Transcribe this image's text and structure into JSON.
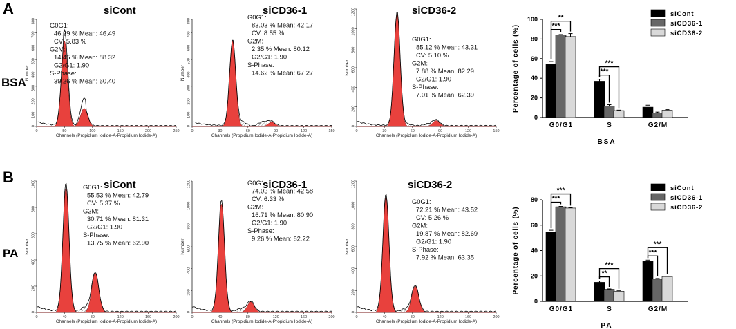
{
  "panels": [
    {
      "letter": "A",
      "row_label": "BSA",
      "histograms": [
        {
          "title": "siCont",
          "x_max_label": "250",
          "xticks": [
            "0",
            "50",
            "100",
            "150",
            "200",
            "250"
          ],
          "yticks": [
            "0",
            "100",
            "200",
            "300",
            "400",
            "500",
            "600",
            "700",
            "800"
          ],
          "xlabel": "Channels (Propidium Iodide-A-Propidium Iodide-A)",
          "ylabel": "Number",
          "stats": [
            "G0G1:",
            "46.29 %    Mean: 46.49",
            "CV: 5.83 %",
            "G2M:",
            "14.45 %    Mean: 88.32",
            "G2/G1: 1.90",
            "S-Phase:",
            "39.26 %    Mean: 60.40"
          ]
        },
        {
          "title": "siCD36-1",
          "x_max_label": "150",
          "xticks": [
            "0",
            "30",
            "60",
            "90",
            "120",
            "150"
          ],
          "yticks": [
            "0",
            "100",
            "200",
            "300",
            "400",
            "500",
            "600",
            "700",
            "800"
          ],
          "xlabel": "Channels (Propidium Iodide-A-Propidium Iodide-A)",
          "ylabel": "Number",
          "stats": [
            "G0G1:",
            "83.03 %    Mean: 42.17",
            "CV: 8.55 %",
            "G2M:",
            "2.35 %    Mean: 80.12",
            "G2/G1: 1.90",
            "S-Phase:",
            "14.62 %    Mean: 67.27"
          ]
        },
        {
          "title": "siCD36-2",
          "x_max_label": "150",
          "xticks": [
            "0",
            "30",
            "60",
            "90",
            "120",
            "150"
          ],
          "yticks": [
            "0",
            "200",
            "400",
            "600",
            "800",
            "1000",
            "1200"
          ],
          "xlabel": "Channels (Propidium Iodide-A-Propidium Iodide-A)",
          "ylabel": "Number",
          "stats": [
            "G0G1:",
            "85.12 %    Mean: 43.31",
            "CV: 5.10 %",
            "G2M:",
            "7.88 %    Mean: 82.29",
            "G2/G1: 1.90",
            "S-Phase:",
            "7.01 %    Mean: 62.39"
          ]
        }
      ]
    },
    {
      "letter": "B",
      "row_label": "PA",
      "histograms": [
        {
          "title": "siCont",
          "x_max_label": "200",
          "xticks": [
            "0",
            "40",
            "80",
            "120",
            "160",
            "200"
          ],
          "yticks": [
            "0",
            "200",
            "400",
            "600",
            "800",
            "1000"
          ],
          "xlabel": "Channels (Propidium Iodide-A-Propidium Iodide-A)",
          "ylabel": "Number",
          "stats": [
            "G0G1:",
            "55.53 %    Mean: 42.79",
            "CV: 5.37 %",
            "G2M:",
            "30.71 %    Mean: 81.31",
            "G2/G1: 1.90",
            "S-Phase:",
            "13.75 %    Mean: 62.90"
          ]
        },
        {
          "title": "siCD36-1",
          "x_max_label": "200",
          "xticks": [
            "0",
            "40",
            "80",
            "120",
            "160",
            "200"
          ],
          "yticks": [
            "0",
            "200",
            "400",
            "600",
            "800",
            "1000",
            "1200"
          ],
          "xlabel": "Channels (Propidium Iodide-A-Propidium Iodide-A)",
          "ylabel": "Number",
          "stats": [
            "G0G1:",
            "74.03 %    Mean: 42.58",
            "CV: 6.33 %",
            "G2M:",
            "16.71 %    Mean: 80.90",
            "G2/G1: 1.90",
            "S-Phase:",
            "9.26 %    Mean: 62.22"
          ]
        },
        {
          "title": "siCD36-2",
          "x_max_label": "200",
          "xticks": [
            "0",
            "40",
            "80",
            "120",
            "160",
            "200"
          ],
          "yticks": [
            "0",
            "200",
            "400",
            "600",
            "800",
            "1000",
            "1200"
          ],
          "xlabel": "Channels (Propidium Iodide-A-Propidium Iodide-A)",
          "ylabel": "Number",
          "stats": [
            "G0G1:",
            "72.21 %    Mean: 43.52",
            "CV: 5.26 %",
            "G2M:",
            "19.87 %    Mean: 82.69",
            "G2/G1: 1.90",
            "S-Phase:",
            "7.92 %    Mean: 63.35"
          ]
        }
      ]
    }
  ],
  "colors": {
    "peak": "#e8413d",
    "s_phase_hatch": "#555555",
    "siCont": "#000000",
    "siCD36-1": "#666666",
    "siCD36-2": "#d9d9d9"
  },
  "chart_data": [
    {
      "type": "bar",
      "title": "",
      "xlabel": "BSA",
      "ylabel": "Percentage of cells (%)",
      "ylim": [
        0,
        100
      ],
      "yticks": [
        0,
        20,
        40,
        60,
        80,
        100
      ],
      "categories": [
        "G0/G1",
        "S",
        "G2/M"
      ],
      "series": [
        {
          "name": "siCont",
          "values": [
            54,
            37,
            10.5
          ],
          "errors": [
            3,
            2,
            2
          ]
        },
        {
          "name": "siCD36-1",
          "values": [
            84,
            11.5,
            4.5
          ],
          "errors": [
            0.5,
            1.5,
            1
          ]
        },
        {
          "name": "siCD36-2",
          "values": [
            82.5,
            7,
            7.5
          ],
          "errors": [
            3,
            0.5,
            0.5
          ]
        }
      ],
      "significance": [
        {
          "category": 0,
          "from": 0,
          "to": 1,
          "label": "***"
        },
        {
          "category": 0,
          "from": 0,
          "to": 2,
          "label": "**"
        },
        {
          "category": 1,
          "from": 0,
          "to": 1,
          "label": "***"
        },
        {
          "category": 1,
          "from": 0,
          "to": 2,
          "label": "***"
        }
      ],
      "legend": "top-right"
    },
    {
      "type": "bar",
      "title": "",
      "xlabel": "PA",
      "ylabel": "Percentage of cells (%)",
      "ylim": [
        0,
        80
      ],
      "yticks": [
        0,
        20,
        40,
        60,
        80
      ],
      "categories": [
        "G0/G1",
        "S",
        "G2/M"
      ],
      "series": [
        {
          "name": "siCont",
          "values": [
            54.5,
            15,
            31.5
          ],
          "errors": [
            1.5,
            1,
            1
          ]
        },
        {
          "name": "siCD36-1",
          "values": [
            74.5,
            9.5,
            17.5
          ],
          "errors": [
            0.3,
            0.3,
            0.5
          ]
        },
        {
          "name": "siCD36-2",
          "values": [
            73.5,
            8,
            19.5
          ],
          "errors": [
            0.3,
            0.3,
            0.3
          ]
        }
      ],
      "significance": [
        {
          "category": 0,
          "from": 0,
          "to": 1,
          "label": "***"
        },
        {
          "category": 0,
          "from": 0,
          "to": 2,
          "label": "***"
        },
        {
          "category": 1,
          "from": 0,
          "to": 1,
          "label": "**"
        },
        {
          "category": 1,
          "from": 0,
          "to": 2,
          "label": "***"
        },
        {
          "category": 2,
          "from": 0,
          "to": 1,
          "label": "***"
        },
        {
          "category": 2,
          "from": 0,
          "to": 2,
          "label": "***"
        }
      ],
      "legend": "top-right"
    }
  ]
}
